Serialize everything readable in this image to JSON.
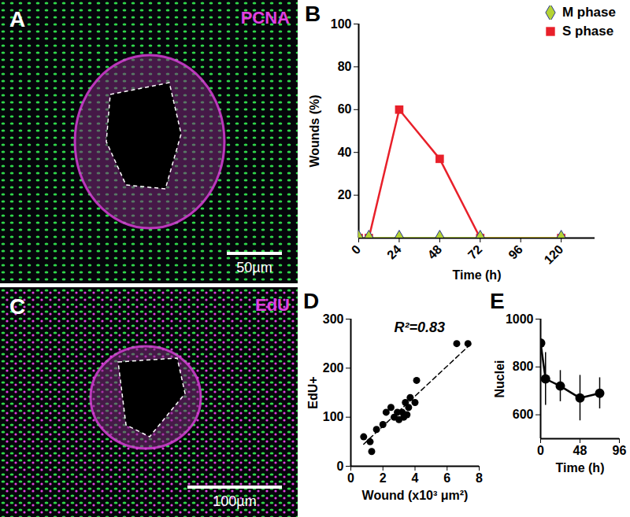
{
  "images": [
    {
      "panel": "A",
      "label": "PCNA",
      "scale_bar": "50µm"
    },
    {
      "panel": "C",
      "label": "EdU",
      "scale_bar": "100µm"
    }
  ],
  "chart_data": [
    {
      "title": "B",
      "type": "line",
      "x_label": "Time (h)",
      "y_label": "Wounds (%)",
      "x": [
        0,
        6,
        24,
        48,
        72,
        120
      ],
      "series": [
        {
          "name": "M phase",
          "color": "#b5d334",
          "marker": "diamond",
          "values": [
            0,
            0,
            0,
            0,
            0,
            0
          ]
        },
        {
          "name": "S phase",
          "color": "#e8202a",
          "marker": "square",
          "values": [
            0,
            0,
            60,
            37,
            0,
            0
          ]
        }
      ],
      "xlim": [
        0,
        140
      ],
      "xticks": [
        0,
        24,
        48,
        72,
        96,
        120
      ],
      "ylim": [
        0,
        100
      ],
      "yticks": [
        20,
        40,
        60,
        80,
        100
      ],
      "legend": "top-right",
      "grid": false
    },
    {
      "title": "D",
      "type": "scatter",
      "x_label": "Wound (x10³ μm²)",
      "y_label": "EdU+",
      "x": [
        0.8,
        1.2,
        1.3,
        1.6,
        2.0,
        2.2,
        2.5,
        2.7,
        2.9,
        3.0,
        3.2,
        3.3,
        3.4,
        3.5,
        3.6,
        3.7,
        4.0,
        4.1,
        6.6,
        7.3
      ],
      "values": [
        60,
        50,
        30,
        75,
        85,
        110,
        120,
        100,
        110,
        95,
        110,
        100,
        130,
        105,
        120,
        140,
        130,
        175,
        250,
        250
      ],
      "color": "#000000",
      "marker": "circle",
      "annotation": "R²=0.83",
      "trend_line": {
        "x": [
          0.8,
          7.5
        ],
        "y": [
          45,
          250
        ],
        "line_style": "dashed"
      },
      "xlim": [
        0,
        8
      ],
      "xticks": [
        0,
        2,
        4,
        6,
        8
      ],
      "ylim": [
        0,
        300
      ],
      "yticks": [
        0,
        100,
        200,
        300
      ],
      "grid": false
    },
    {
      "title": "E",
      "type": "line",
      "x_label": "Time (h)",
      "y_label": "Nuclei",
      "x": [
        0,
        6,
        24,
        48,
        72
      ],
      "values": [
        900,
        750,
        720,
        670,
        690
      ],
      "errors": [
        0,
        110,
        65,
        95,
        65
      ],
      "color": "#000000",
      "marker": "circle",
      "xlim": [
        0,
        96
      ],
      "xticks": [
        0,
        48,
        96
      ],
      "ylim": [
        500,
        1000
      ],
      "yticks": [
        600,
        800,
        1000
      ],
      "grid": false
    }
  ]
}
